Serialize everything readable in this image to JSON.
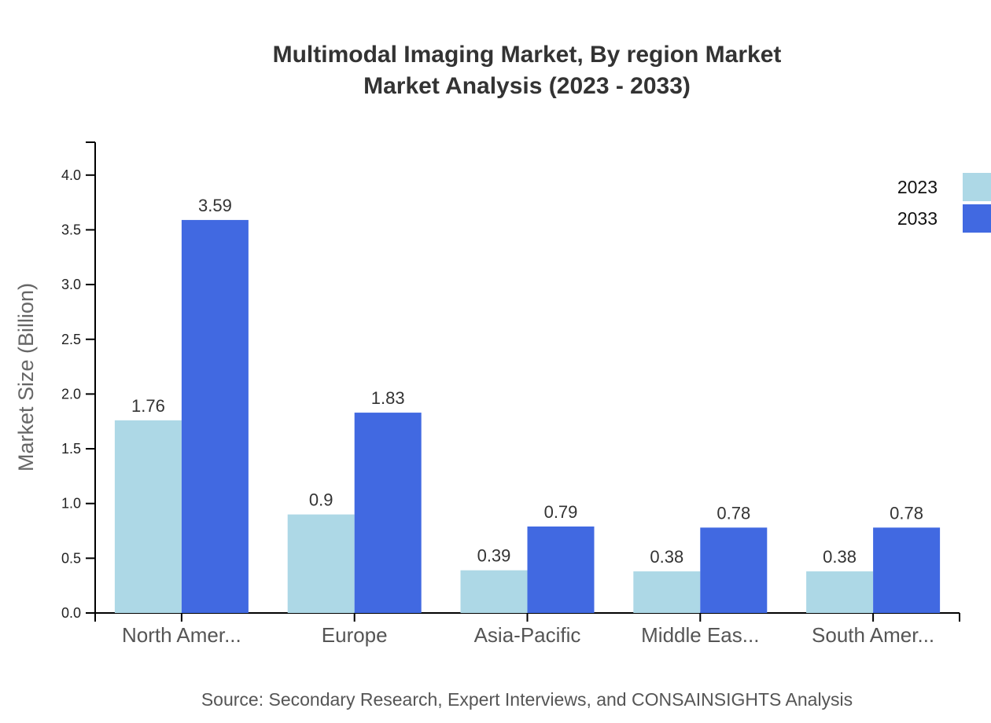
{
  "title_lines": [
    "Multimodal Imaging Market, By region Market",
    "Market Analysis (2023 - 2033)"
  ],
  "source": "Source: Secondary Research, Expert Interviews, and CONSAINSIGHTS Analysis",
  "colors": {
    "2023": "#add8e6",
    "2033": "#4169e1",
    "axis": "#000000",
    "text": "#333333",
    "tick_label": "#555555"
  },
  "chart_data": {
    "type": "bar",
    "title": "Multimodal Imaging Market, By region Market Market Analysis (2023 - 2033)",
    "xlabel": "",
    "ylabel": "Market Size (Billion)",
    "categories": [
      "North Amer...",
      "Europe",
      "Asia-Pacific",
      "Middle Eas...",
      "South Amer..."
    ],
    "series": [
      {
        "name": "2023",
        "values": [
          1.76,
          0.9,
          0.39,
          0.38,
          0.38
        ]
      },
      {
        "name": "2033",
        "values": [
          3.59,
          1.83,
          0.79,
          0.78,
          0.78
        ]
      }
    ],
    "ylim": [
      0,
      4.3
    ],
    "yticks": [
      "0.0",
      "0.5",
      "1.0",
      "1.5",
      "2.0",
      "2.5",
      "3.0",
      "3.5",
      "4.0"
    ],
    "grid": false,
    "legend_position": "top-right"
  }
}
